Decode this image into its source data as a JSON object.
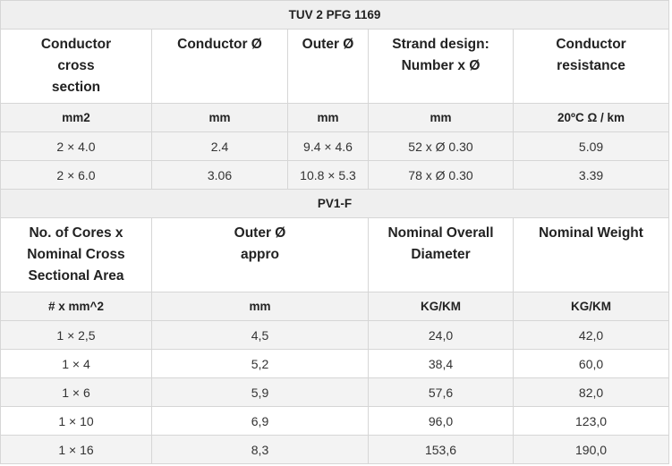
{
  "table1": {
    "title": "TUV 2 PFG 1169",
    "headers": [
      "Conductor\ncross\nsection",
      "Conductor Ø",
      "Outer Ø",
      "Strand design:\nNumber x Ø",
      "Conductor\nresistance"
    ],
    "units": [
      "mm2",
      "mm",
      "mm",
      "mm",
      "20ºC Ω / km"
    ],
    "rows": [
      [
        "2 × 4.0",
        "2.4",
        "9.4 × 4.6",
        "52 x Ø 0.30",
        "5.09"
      ],
      [
        "2 × 6.0",
        "3.06",
        "10.8 × 5.3",
        "78 x Ø 0.30",
        "3.39"
      ]
    ]
  },
  "table2": {
    "title": "PV1-F",
    "headers": [
      "No. of Cores x\nNominal Cross\nSectional Area",
      "Outer Ø\nappro",
      "Nominal Overall\nDiameter",
      "Nominal Weight"
    ],
    "units": [
      "# x mm^2",
      "mm",
      "KG/KM",
      "KG/KM"
    ],
    "rows": [
      [
        "1 × 2,5",
        "4,5",
        "24,0",
        "42,0"
      ],
      [
        "1 × 4",
        "5,2",
        "38,4",
        "60,0"
      ],
      [
        "1 × 6",
        "5,9",
        "57,6",
        "82,0"
      ],
      [
        "1 × 10",
        "6,9",
        "96,0",
        "123,0"
      ],
      [
        "1 × 16",
        "8,3",
        "153,6",
        "190,0"
      ]
    ]
  }
}
